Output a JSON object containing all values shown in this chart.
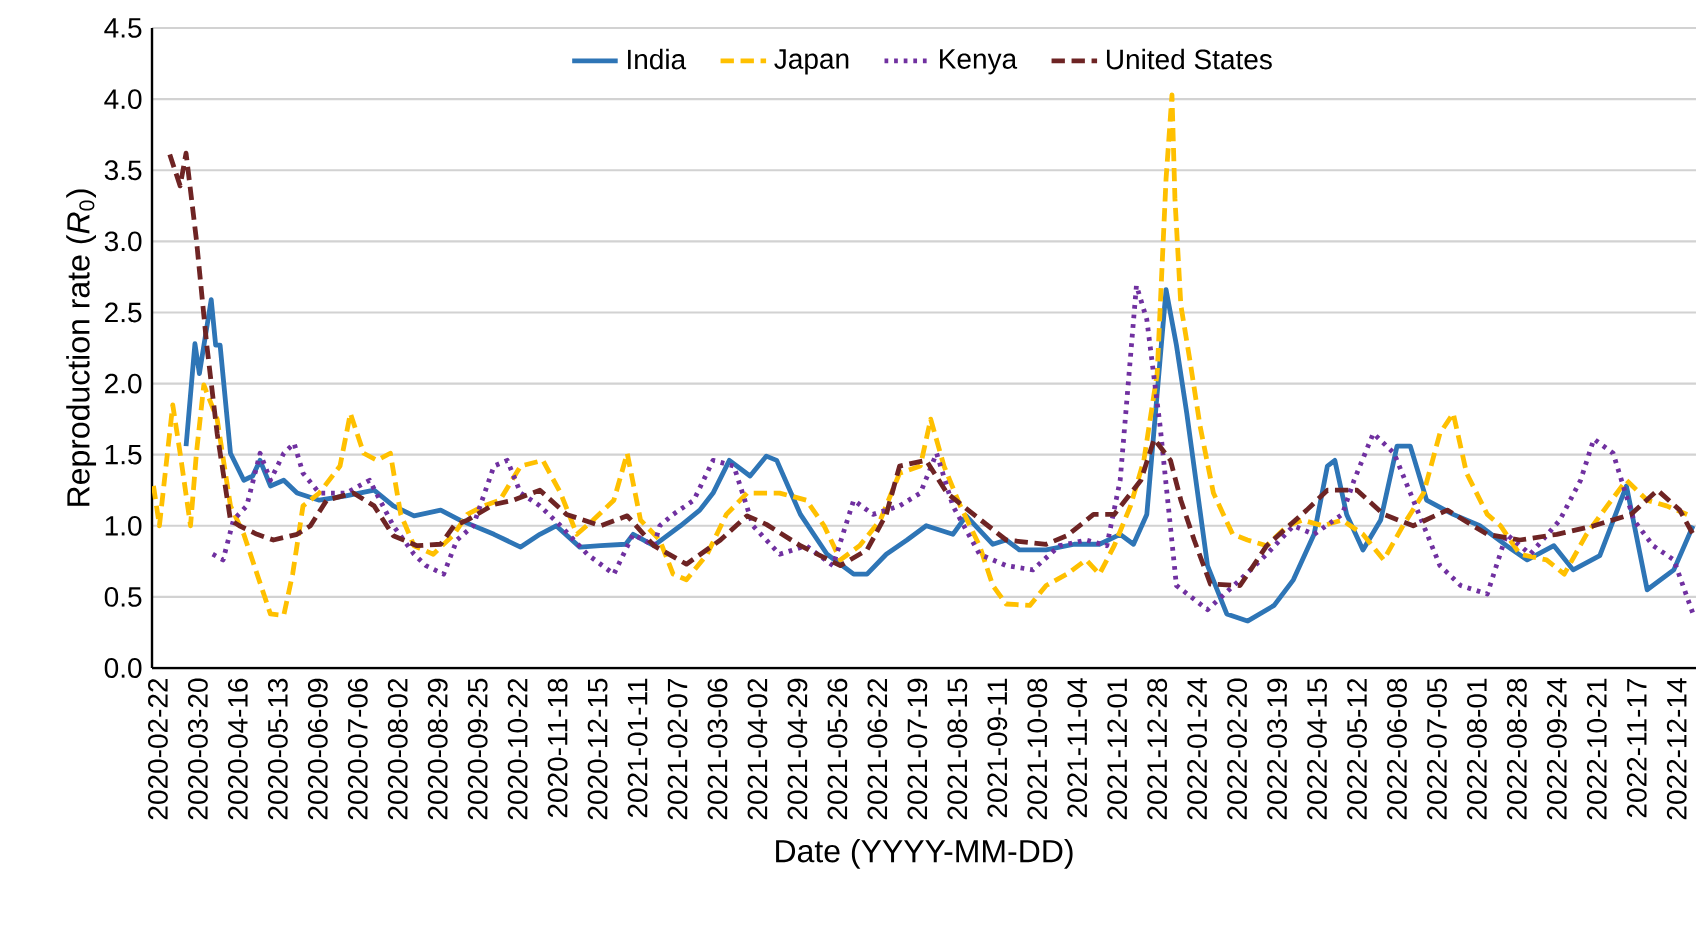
{
  "chart_data": {
    "type": "line",
    "xlabel": "Date (YYYY-MM-DD)",
    "ylabel": "Reproduction rate (*R*$_{0}$)",
    "xlim": [
      "2020-02-18",
      "2022-12-27"
    ],
    "ylim": [
      0,
      4.5
    ],
    "xticks": [
      "2020-02-22",
      "2020-03-20",
      "2020-04-16",
      "2020-05-13",
      "2020-06-09",
      "2020-07-06",
      "2020-08-02",
      "2020-08-29",
      "2020-09-25",
      "2020-10-22",
      "2020-11-18",
      "2020-12-15",
      "2021-01-11",
      "2021-02-07",
      "2021-03-06",
      "2021-04-02",
      "2021-04-29",
      "2021-05-26",
      "2021-06-22",
      "2021-07-19",
      "2021-08-15",
      "2021-09-11",
      "2021-10-08",
      "2021-11-04",
      "2021-12-01",
      "2021-12-28",
      "2022-01-24",
      "2022-02-20",
      "2022-03-19",
      "2022-04-15",
      "2022-05-12",
      "2022-06-08",
      "2022-07-05",
      "2022-08-01",
      "2022-08-28",
      "2022-09-24",
      "2022-10-21",
      "2022-11-17",
      "2022-12-14"
    ],
    "yticks": [
      {
        "value": 0,
        "label": "0.0"
      },
      {
        "value": 0.5,
        "label": "0.5"
      },
      {
        "value": 1,
        "label": "1.0"
      },
      {
        "value": 1.5,
        "label": "1.5"
      },
      {
        "value": 2,
        "label": "2.0"
      },
      {
        "value": 2.5,
        "label": "2.5"
      },
      {
        "value": 3,
        "label": "3.0"
      },
      {
        "value": 3.5,
        "label": "3.5"
      },
      {
        "value": 4,
        "label": "4.0"
      },
      {
        "value": 4.5,
        "label": "4.5"
      }
    ],
    "grid": "y",
    "legend": "top",
    "series": [
      {
        "name": "India",
        "color": "#2e75b6",
        "line_style": "solid",
        "x": [
          "2020-03-12",
          "2020-03-18",
          "2020-03-21",
          "2020-03-29",
          "2020-04-01",
          "2020-04-04",
          "2020-04-11",
          "2020-04-20",
          "2020-04-26",
          "2020-05-01",
          "2020-05-08",
          "2020-05-17",
          "2020-05-26",
          "2020-06-10",
          "2020-06-28",
          "2020-07-17",
          "2020-07-30",
          "2020-08-13",
          "2020-08-31",
          "2020-09-13",
          "2020-10-06",
          "2020-10-24",
          "2020-11-06",
          "2020-11-17",
          "2020-12-03",
          "2020-12-17",
          "2021-01-03",
          "2021-01-08",
          "2021-01-22",
          "2021-02-09",
          "2021-02-22",
          "2021-03-03",
          "2021-03-14",
          "2021-03-28",
          "2021-04-08",
          "2021-04-15",
          "2021-05-01",
          "2021-05-19",
          "2021-06-06",
          "2021-06-15",
          "2021-06-28",
          "2021-07-12",
          "2021-07-25",
          "2021-08-12",
          "2021-08-21",
          "2021-09-08",
          "2021-09-17",
          "2021-09-26",
          "2021-10-14",
          "2021-11-02",
          "2021-11-19",
          "2021-12-03",
          "2021-12-12",
          "2021-12-21",
          "2022-01-03",
          "2022-01-10",
          "2022-01-17",
          "2022-01-31",
          "2022-02-13",
          "2022-02-27",
          "2022-03-17",
          "2022-03-30",
          "2022-04-13",
          "2022-04-22",
          "2022-04-27",
          "2022-05-05",
          "2022-05-16",
          "2022-05-28",
          "2022-06-08",
          "2022-06-17",
          "2022-06-28",
          "2022-07-16",
          "2022-08-03",
          "2022-08-21",
          "2022-09-04",
          "2022-09-22",
          "2022-10-05",
          "2022-10-23",
          "2022-11-10",
          "2022-11-24",
          "2022-12-12",
          "2022-12-25"
        ],
        "values": [
          1.56,
          2.28,
          2.07,
          2.59,
          2.27,
          2.27,
          1.51,
          1.32,
          1.35,
          1.46,
          1.28,
          1.32,
          1.23,
          1.18,
          1.21,
          1.25,
          1.14,
          1.07,
          1.11,
          1.04,
          0.94,
          0.85,
          0.94,
          1.0,
          0.85,
          0.86,
          0.87,
          0.94,
          0.86,
          1.0,
          1.11,
          1.23,
          1.46,
          1.35,
          1.49,
          1.46,
          1.08,
          0.8,
          0.66,
          0.66,
          0.8,
          0.9,
          1.0,
          0.94,
          1.07,
          0.87,
          0.9,
          0.83,
          0.83,
          0.87,
          0.87,
          0.94,
          0.87,
          1.08,
          2.66,
          2.27,
          1.79,
          0.72,
          0.38,
          0.33,
          0.44,
          0.62,
          0.94,
          1.42,
          1.46,
          1.08,
          0.83,
          1.04,
          1.56,
          1.56,
          1.18,
          1.08,
          1.0,
          0.86,
          0.76,
          0.86,
          0.69,
          0.79,
          1.28,
          0.55,
          0.69,
          1.0
        ]
      },
      {
        "name": "Japan",
        "color": "#ffc000",
        "line_style": "dashed",
        "x": [
          "2020-02-19",
          "2020-02-23",
          "2020-03-03",
          "2020-03-08",
          "2020-03-15",
          "2020-03-19",
          "2020-03-24",
          "2020-04-02",
          "2020-04-11",
          "2020-04-20",
          "2020-04-29",
          "2020-05-08",
          "2020-05-17",
          "2020-05-23",
          "2020-05-30",
          "2020-06-10",
          "2020-06-24",
          "2020-07-01",
          "2020-07-10",
          "2020-07-19",
          "2020-07-28",
          "2020-08-04",
          "2020-08-13",
          "2020-08-26",
          "2020-09-09",
          "2020-09-18",
          "2020-09-29",
          "2020-10-10",
          "2020-10-24",
          "2020-11-08",
          "2020-11-20",
          "2020-12-01",
          "2020-12-12",
          "2020-12-26",
          "2021-01-04",
          "2021-01-13",
          "2021-01-26",
          "2021-02-04",
          "2021-02-13",
          "2021-02-27",
          "2021-03-12",
          "2021-03-26",
          "2021-04-17",
          "2021-05-05",
          "2021-05-17",
          "2021-05-28",
          "2021-06-10",
          "2021-06-24",
          "2021-07-07",
          "2021-07-21",
          "2021-07-28",
          "2021-08-06",
          "2021-08-17",
          "2021-08-30",
          "2021-09-08",
          "2021-09-17",
          "2021-10-03",
          "2021-10-14",
          "2021-10-28",
          "2021-11-10",
          "2021-11-19",
          "2021-11-29",
          "2021-12-10",
          "2021-12-19",
          "2021-12-28",
          "2022-01-03",
          "2022-01-07",
          "2022-01-09",
          "2022-01-13",
          "2022-01-19",
          "2022-01-26",
          "2022-02-04",
          "2022-02-17",
          "2022-02-27",
          "2022-03-12",
          "2022-03-26",
          "2022-04-05",
          "2022-04-19",
          "2022-05-02",
          "2022-05-16",
          "2022-05-30",
          "2022-06-12",
          "2022-06-26",
          "2022-07-07",
          "2022-07-16",
          "2022-07-25",
          "2022-08-08",
          "2022-08-17",
          "2022-08-30",
          "2022-09-17",
          "2022-09-29",
          "2022-10-14",
          "2022-10-28",
          "2022-11-10",
          "2022-11-24",
          "2022-12-07",
          "2022-12-21"
        ],
        "values": [
          1.28,
          1.0,
          1.85,
          1.51,
          1.0,
          1.51,
          1.99,
          1.75,
          1.14,
          0.94,
          0.66,
          0.38,
          0.37,
          0.66,
          1.14,
          1.23,
          1.42,
          1.79,
          1.51,
          1.46,
          1.51,
          1.08,
          0.86,
          0.8,
          0.94,
          1.08,
          1.14,
          1.18,
          1.42,
          1.46,
          1.23,
          0.94,
          1.04,
          1.18,
          1.51,
          1.04,
          0.9,
          0.66,
          0.62,
          0.8,
          1.08,
          1.23,
          1.23,
          1.18,
          1.0,
          0.76,
          0.86,
          1.04,
          1.37,
          1.42,
          1.75,
          1.42,
          1.14,
          0.86,
          0.58,
          0.45,
          0.44,
          0.58,
          0.66,
          0.76,
          0.66,
          0.86,
          1.14,
          1.46,
          2.07,
          3.44,
          4.03,
          3.3,
          2.55,
          2.17,
          1.7,
          1.23,
          0.94,
          0.9,
          0.86,
          1.0,
          1.04,
          1.0,
          1.04,
          0.94,
          0.76,
          1.0,
          1.23,
          1.65,
          1.79,
          1.37,
          1.08,
          1.0,
          0.8,
          0.76,
          0.66,
          0.94,
          1.14,
          1.32,
          1.18,
          1.14,
          1.08
        ]
      },
      {
        "name": "Kenya",
        "color": "#7030a0",
        "line_style": "dotted",
        "x": [
          "2020-03-30",
          "2020-04-06",
          "2020-04-13",
          "2020-04-22",
          "2020-05-01",
          "2020-05-08",
          "2020-05-17",
          "2020-05-24",
          "2020-05-30",
          "2020-06-10",
          "2020-06-28",
          "2020-07-14",
          "2020-07-30",
          "2020-08-13",
          "2020-08-21",
          "2020-09-02",
          "2020-09-11",
          "2020-09-22",
          "2020-10-06",
          "2020-10-15",
          "2020-10-24",
          "2020-11-06",
          "2020-11-20",
          "2020-12-08",
          "2020-12-26",
          "2021-01-08",
          "2021-01-22",
          "2021-01-26",
          "2021-02-04",
          "2021-02-18",
          "2021-03-03",
          "2021-03-17",
          "2021-03-30",
          "2021-04-17",
          "2021-05-05",
          "2021-05-23",
          "2021-06-06",
          "2021-06-19",
          "2021-07-07",
          "2021-07-21",
          "2021-08-01",
          "2021-08-12",
          "2021-08-30",
          "2021-09-17",
          "2021-10-05",
          "2021-10-23",
          "2021-11-10",
          "2021-11-24",
          "2021-12-03",
          "2021-12-14",
          "2021-12-21",
          "2021-12-30",
          "2022-01-10",
          "2022-01-31",
          "2022-02-22",
          "2022-03-12",
          "2022-03-30",
          "2022-04-13",
          "2022-05-02",
          "2022-05-10",
          "2022-05-23",
          "2022-06-06",
          "2022-06-19",
          "2022-07-07",
          "2022-07-21",
          "2022-08-08",
          "2022-08-21",
          "2022-09-06",
          "2022-09-26",
          "2022-10-10",
          "2022-10-19",
          "2022-11-01",
          "2022-11-15",
          "2022-11-28",
          "2022-12-12",
          "2022-12-25"
        ],
        "values": [
          0.8,
          0.76,
          1.04,
          1.14,
          1.51,
          1.32,
          1.51,
          1.58,
          1.37,
          1.23,
          1.23,
          1.32,
          1.0,
          0.8,
          0.72,
          0.66,
          0.9,
          1.0,
          1.42,
          1.46,
          1.23,
          1.14,
          1.0,
          0.8,
          0.66,
          0.94,
          0.86,
          1.0,
          1.08,
          1.18,
          1.46,
          1.42,
          1.0,
          0.8,
          0.86,
          0.72,
          1.18,
          1.08,
          1.14,
          1.23,
          1.51,
          1.14,
          0.8,
          0.72,
          0.69,
          0.86,
          0.9,
          0.86,
          1.32,
          2.69,
          2.45,
          1.7,
          0.58,
          0.41,
          0.62,
          0.8,
          1.0,
          0.94,
          1.08,
          1.32,
          1.65,
          1.51,
          1.18,
          0.72,
          0.58,
          0.52,
          0.94,
          0.8,
          1.04,
          1.32,
          1.61,
          1.51,
          1.04,
          0.86,
          0.76,
          0.38
        ]
      },
      {
        "name": "United States",
        "color": "#6e2424",
        "line_style": "dashed",
        "x": [
          "2020-03-01",
          "2020-03-08",
          "2020-03-12",
          "2020-03-19",
          "2020-03-26",
          "2020-04-02",
          "2020-04-11",
          "2020-04-17",
          "2020-04-29",
          "2020-05-10",
          "2020-05-26",
          "2020-06-04",
          "2020-06-15",
          "2020-07-03",
          "2020-07-17",
          "2020-07-30",
          "2020-08-15",
          "2020-08-31",
          "2020-09-09",
          "2020-09-18",
          "2020-10-06",
          "2020-10-19",
          "2020-11-06",
          "2020-11-24",
          "2020-12-17",
          "2021-01-04",
          "2021-01-22",
          "2021-02-13",
          "2021-03-08",
          "2021-03-26",
          "2021-04-08",
          "2021-05-01",
          "2021-05-28",
          "2021-06-15",
          "2021-06-28",
          "2021-07-07",
          "2021-07-25",
          "2021-08-08",
          "2021-08-26",
          "2021-09-17",
          "2021-10-14",
          "2021-10-28",
          "2021-11-15",
          "2021-11-29",
          "2021-12-17",
          "2021-12-26",
          "2022-01-06",
          "2022-01-13",
          "2022-01-22",
          "2022-02-02",
          "2022-02-22",
          "2022-03-12",
          "2022-04-08",
          "2022-04-22",
          "2022-05-12",
          "2022-05-30",
          "2022-06-19",
          "2022-07-12",
          "2022-08-08",
          "2022-08-30",
          "2022-09-24",
          "2022-10-19",
          "2022-11-13",
          "2022-12-01",
          "2022-12-16",
          "2022-12-25"
        ],
        "values": [
          3.61,
          3.39,
          3.62,
          3.01,
          2.27,
          1.65,
          1.04,
          1.0,
          0.94,
          0.9,
          0.94,
          1.0,
          1.18,
          1.23,
          1.14,
          0.93,
          0.86,
          0.87,
          1.0,
          1.04,
          1.15,
          1.18,
          1.25,
          1.08,
          1.0,
          1.07,
          0.86,
          0.73,
          0.9,
          1.07,
          1.01,
          0.86,
          0.72,
          0.83,
          1.08,
          1.42,
          1.46,
          1.23,
          1.08,
          0.9,
          0.87,
          0.93,
          1.08,
          1.08,
          1.32,
          1.61,
          1.46,
          1.18,
          0.9,
          0.59,
          0.58,
          0.86,
          1.11,
          1.25,
          1.25,
          1.08,
          1.0,
          1.11,
          0.94,
          0.9,
          0.94,
          1.0,
          1.08,
          1.25,
          1.11,
          0.94
        ]
      }
    ]
  }
}
